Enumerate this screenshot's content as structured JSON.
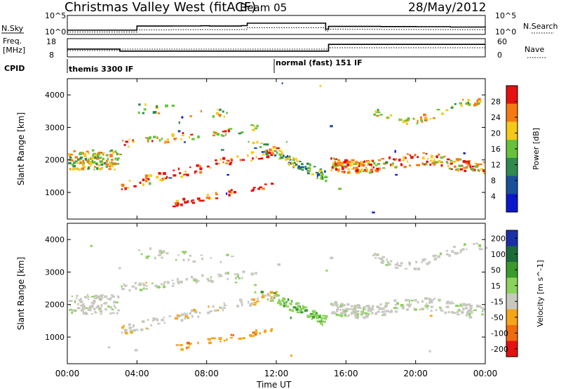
{
  "chart_data": [
    {
      "type": "line",
      "header": {
        "station": "Christmas Valley West (fitACF)",
        "beam": "Beam 05",
        "date": "28/May/2012"
      },
      "left_label": "N.Sky",
      "right_label": "N.Search",
      "y_ticks_left": [
        "10^5",
        "10^0"
      ],
      "y_ticks_right": [
        "10^5",
        "10^0"
      ],
      "x": [
        "00:00",
        "02:00",
        "03:00",
        "04:00",
        "06:00",
        "07:40",
        "08:10",
        "10:00",
        "10:20",
        "12:00",
        "14:00",
        "14:50",
        "15:00",
        "16:00",
        "18:00",
        "20:00",
        "22:00",
        "00:00"
      ],
      "series": [
        {
          "values": [
            10,
            10,
            10,
            150,
            160,
            180,
            150,
            200,
            1000,
            1000,
            1000,
            20,
            120,
            120,
            110,
            100,
            80,
            60
          ]
        },
        {
          "values": [
            3,
            3,
            3,
            12,
            14,
            15,
            14,
            16,
            50,
            50,
            50,
            6,
            20,
            18,
            16,
            15,
            14,
            13
          ]
        }
      ]
    },
    {
      "type": "line",
      "left_label_lines": [
        "Freq.",
        "[MHz]"
      ],
      "right_label": "Nave",
      "cpid_label": "CPID",
      "y_ticks_left": [
        "18",
        "8"
      ],
      "y_ticks_right": [
        "60",
        "0"
      ],
      "x": [
        "00:00",
        "03:00",
        "03:01",
        "07:45",
        "08:10",
        "10:05",
        "10:20",
        "14:50",
        "15:00",
        "18:00",
        "24:00"
      ],
      "series": [
        {
          "values": [
            12.2,
            12.2,
            11.0,
            11.0,
            11.0,
            11.0,
            11.0,
            11.0,
            15.0,
            15.0,
            15.0
          ]
        },
        {
          "values": [
            20,
            20,
            25,
            25,
            25,
            25,
            25,
            25,
            30,
            30,
            30
          ]
        }
      ],
      "cpid_annotations": [
        "themis 3300 IF",
        "normal (fast) 151 IF"
      ]
    },
    {
      "type": "heatmap",
      "ylabel": "Slant Range [km]",
      "y_ticks": [
        1000,
        2000,
        3000,
        4000
      ],
      "ylim": [
        180,
        4500
      ],
      "colorbar_label": "Power [dB]",
      "colorbar_ticks": [
        4,
        8,
        12,
        16,
        20,
        24,
        28
      ],
      "colors": [
        "#0c17cc",
        "#1a4f9c",
        "#2e8a4e",
        "#67c23a",
        "#f5c918",
        "#f57a12",
        "#e5100f"
      ]
    },
    {
      "type": "heatmap",
      "ylabel": "Slant Range [km]",
      "y_ticks": [
        1000,
        2000,
        3000,
        4000
      ],
      "ylim": [
        180,
        4500
      ],
      "colorbar_label": "Velocity [m s^-1]",
      "colorbar_ticks": [
        200,
        100,
        50,
        15,
        -15,
        -50,
        -100,
        -200
      ],
      "colors": [
        "#1b2fa8",
        "#1d6b3a",
        "#3a9b2a",
        "#8bd35c",
        "#c8c8c0",
        "#f5a516",
        "#f06a10",
        "#e51010"
      ],
      "xlabel": "Time UT",
      "x_ticks": [
        "00:00",
        "04:00",
        "08:00",
        "12:00",
        "16:00",
        "20:00",
        "00:00"
      ]
    }
  ]
}
